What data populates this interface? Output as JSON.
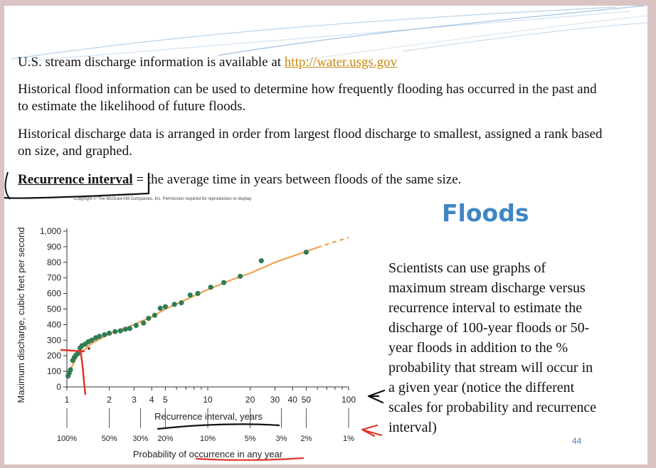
{
  "slide": {
    "lines": {
      "line1_prefix": "U.S. stream discharge information is available at ",
      "line1_link": "http://water.usgs.gov",
      "para2": "Historical flood information can be used to determine how frequently flooding has occurred in the past and to estimate the likelihood of future floods.",
      "para3": "Historical discharge data is arranged in order from largest flood discharge to smallest, assigned a rank based on size, and graphed.",
      "definition_term": "Recurrence interval",
      "definition_text": " = the average time in years between floods of the same size."
    },
    "copyright": "Copyright © The McGraw-Hill Companies, Inc. Permission required for reproduction or display.",
    "heading": "Floods",
    "side_text": "Scientists can use graphs of maximum stream discharge versus recurrence interval to estimate the discharge of 100-year floods or 50-year floods in addition to the % probability that stream will occur in a given year (notice the different scales for probability and recurrence interval)",
    "page_number": "44"
  },
  "colors": {
    "points": "#2f7d52",
    "fit_line": "#f0a050",
    "link": "#c8890e",
    "heading": "#3f86c4",
    "ink_red": "#e0352b",
    "ink_black": "#111111"
  },
  "chart_data": {
    "type": "scatter",
    "title": "",
    "ylabel": "Maximum discharge, cubic feet per second",
    "xlabel": "Recurrence interval, years",
    "x2label": "Probability of occurrence in any year",
    "x_scale": "log",
    "xlim": [
      1,
      100
    ],
    "ylim": [
      0,
      1000
    ],
    "yticks": [
      "0",
      "100",
      "200",
      "300",
      "400",
      "500",
      "600",
      "700",
      "800",
      "900",
      "1,000"
    ],
    "xticks": [
      "1",
      "2",
      "3",
      "4",
      "5",
      "10",
      "20",
      "30",
      "40",
      "50",
      "100"
    ],
    "probability_ticks": [
      "100%",
      "50%",
      "30%",
      "20%",
      "10%",
      "5%",
      "3%",
      "2%",
      "1%"
    ],
    "probability_values": [
      1,
      2,
      3.33,
      5,
      10,
      20,
      33.3,
      50,
      100
    ],
    "points": [
      {
        "x": 1.02,
        "y": 70
      },
      {
        "x": 1.04,
        "y": 90
      },
      {
        "x": 1.06,
        "y": 110
      },
      {
        "x": 1.1,
        "y": 170
      },
      {
        "x": 1.13,
        "y": 190
      },
      {
        "x": 1.16,
        "y": 205
      },
      {
        "x": 1.2,
        "y": 215
      },
      {
        "x": 1.24,
        "y": 250
      },
      {
        "x": 1.28,
        "y": 265
      },
      {
        "x": 1.35,
        "y": 275
      },
      {
        "x": 1.42,
        "y": 290
      },
      {
        "x": 1.5,
        "y": 300
      },
      {
        "x": 1.6,
        "y": 315
      },
      {
        "x": 1.7,
        "y": 325
      },
      {
        "x": 1.85,
        "y": 335
      },
      {
        "x": 2.0,
        "y": 345
      },
      {
        "x": 2.2,
        "y": 355
      },
      {
        "x": 2.4,
        "y": 360
      },
      {
        "x": 2.6,
        "y": 370
      },
      {
        "x": 2.8,
        "y": 375
      },
      {
        "x": 3.1,
        "y": 395
      },
      {
        "x": 3.5,
        "y": 410
      },
      {
        "x": 3.8,
        "y": 440
      },
      {
        "x": 4.2,
        "y": 460
      },
      {
        "x": 4.6,
        "y": 505
      },
      {
        "x": 5.0,
        "y": 515
      },
      {
        "x": 5.8,
        "y": 530
      },
      {
        "x": 6.5,
        "y": 540
      },
      {
        "x": 7.5,
        "y": 590
      },
      {
        "x": 8.5,
        "y": 600
      },
      {
        "x": 10.5,
        "y": 640
      },
      {
        "x": 13,
        "y": 670
      },
      {
        "x": 17,
        "y": 710
      },
      {
        "x": 24,
        "y": 810
      },
      {
        "x": 50,
        "y": 865
      }
    ],
    "fit_line": [
      {
        "x": 1.0,
        "y": 70
      },
      {
        "x": 1.2,
        "y": 205
      },
      {
        "x": 1.5,
        "y": 280
      },
      {
        "x": 2,
        "y": 340
      },
      {
        "x": 3,
        "y": 400
      },
      {
        "x": 4,
        "y": 450
      },
      {
        "x": 5,
        "y": 500
      },
      {
        "x": 7,
        "y": 560
      },
      {
        "x": 10,
        "y": 625
      },
      {
        "x": 15,
        "y": 690
      },
      {
        "x": 20,
        "y": 730
      },
      {
        "x": 30,
        "y": 800
      },
      {
        "x": 50,
        "y": 870
      },
      {
        "x": 60,
        "y": 895
      }
    ],
    "fit_line_extension": [
      {
        "x": 60,
        "y": 895
      },
      {
        "x": 100,
        "y": 960
      }
    ]
  }
}
